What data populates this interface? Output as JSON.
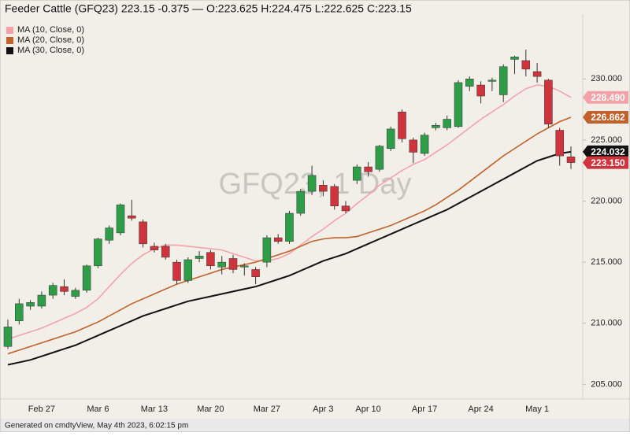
{
  "chart_data": {
    "type": "candlestick",
    "title": "Feeder Cattle (GFQ23) 223.15 -0.375 — O:223.625 H:224.475 L:222.625 C:223.15",
    "watermark": "GFQ23, 1 Day",
    "footer": "Generated on cmdtyView, May 4th 2023, 6:02:15 pm",
    "categories": [
      null,
      null,
      null,
      "Feb 27",
      null,
      null,
      null,
      null,
      "Mar 6",
      null,
      null,
      null,
      null,
      "Mar 13",
      null,
      null,
      null,
      null,
      "Mar 20",
      null,
      null,
      null,
      null,
      "Mar 27",
      null,
      null,
      null,
      null,
      "Apr 3",
      null,
      null,
      null,
      "Apr 10",
      null,
      null,
      null,
      null,
      "Apr 17",
      null,
      null,
      null,
      null,
      "Apr 24",
      null,
      null,
      null,
      null,
      "May 1",
      null,
      null,
      null
    ],
    "up_color": "#2f9c48",
    "down_color": "#cf333b",
    "open": [
      208.1,
      210.2,
      211.4,
      211.4,
      212.3,
      213.0,
      212.2,
      212.7,
      214.7,
      216.8,
      217.4,
      218.8,
      218.3,
      216.3,
      216.3,
      215.0,
      213.5,
      215.3,
      215.8,
      214.6,
      215.3,
      214.6,
      214.4,
      215.0,
      217.0,
      216.7,
      219.0,
      220.8,
      221.3,
      221.2,
      219.6,
      221.7,
      222.8,
      222.6,
      224.3,
      227.3,
      225.0,
      223.9,
      226.0,
      226.0,
      226.1,
      229.4,
      229.5,
      229.8,
      228.7,
      231.6,
      231.5,
      230.6,
      229.9,
      225.8,
      223.625
    ],
    "high": [
      210.3,
      212.0,
      211.9,
      212.6,
      213.3,
      213.6,
      212.9,
      214.8,
      217.0,
      218.0,
      219.8,
      220.1,
      218.5,
      216.6,
      216.5,
      215.2,
      215.4,
      215.9,
      216.0,
      215.5,
      215.6,
      214.9,
      214.6,
      217.2,
      217.3,
      219.2,
      221.0,
      222.9,
      221.7,
      221.4,
      220.0,
      223.0,
      223.2,
      224.6,
      226.1,
      227.5,
      225.2,
      225.6,
      226.4,
      227.0,
      229.9,
      230.2,
      229.8,
      230.1,
      231.2,
      231.9,
      232.4,
      231.3,
      230.0,
      226.0,
      224.475
    ],
    "low": [
      207.9,
      209.9,
      211.1,
      211.2,
      212.0,
      212.3,
      212.0,
      212.5,
      214.5,
      216.5,
      217.2,
      218.4,
      216.2,
      215.8,
      215.2,
      213.2,
      213.3,
      215.0,
      214.4,
      214.0,
      214.1,
      213.9,
      213.2,
      214.6,
      216.5,
      216.5,
      218.8,
      220.5,
      220.4,
      219.3,
      219.0,
      221.4,
      222.0,
      222.4,
      224.1,
      224.8,
      223.1,
      223.7,
      225.8,
      225.8,
      226.0,
      229.0,
      228.0,
      229.0,
      228.1,
      230.4,
      230.2,
      229.7,
      226.0,
      222.9,
      222.625
    ],
    "close": [
      209.7,
      211.6,
      211.7,
      212.3,
      213.1,
      212.6,
      212.7,
      214.7,
      216.9,
      217.8,
      219.7,
      218.6,
      216.5,
      216.0,
      215.4,
      213.5,
      215.2,
      215.5,
      214.7,
      215.0,
      214.4,
      214.7,
      213.8,
      217.0,
      216.7,
      219.0,
      220.8,
      222.1,
      220.8,
      219.6,
      219.2,
      222.8,
      222.4,
      224.5,
      225.9,
      225.1,
      224.0,
      225.4,
      226.2,
      226.7,
      229.7,
      230.0,
      228.6,
      229.9,
      231.0,
      231.8,
      230.8,
      230.2,
      226.3,
      223.7,
      223.15
    ],
    "last_price": {
      "value": 223.15,
      "label": "223.150",
      "color": "#cf333b"
    },
    "series": [
      {
        "name": "MA (10, Close, 0)",
        "color": "#f2a2a9",
        "value_label": "228.490",
        "values": [
          208.7,
          209.0,
          209.3,
          209.6,
          210.0,
          210.4,
          210.8,
          211.3,
          212.0,
          213.0,
          214.0,
          214.9,
          215.6,
          216.1,
          216.4,
          216.4,
          216.3,
          216.2,
          216.1,
          216.0,
          215.7,
          215.4,
          215.1,
          215.1,
          215.3,
          215.7,
          216.4,
          217.1,
          217.7,
          218.4,
          219.0,
          219.8,
          220.5,
          221.3,
          221.9,
          222.5,
          223.0,
          223.4,
          224.0,
          224.6,
          225.3,
          226.0,
          226.7,
          227.3,
          227.9,
          228.6,
          229.2,
          229.5,
          229.4,
          229.0,
          228.49
        ]
      },
      {
        "name": "MA (20, Close, 0)",
        "color": "#c0622a",
        "value_label": "226.862",
        "values": [
          207.5,
          207.8,
          208.1,
          208.4,
          208.7,
          209.0,
          209.3,
          209.7,
          210.1,
          210.6,
          211.1,
          211.6,
          212.0,
          212.4,
          212.8,
          213.2,
          213.5,
          213.8,
          214.1,
          214.4,
          214.6,
          214.8,
          215.0,
          215.3,
          215.6,
          215.9,
          216.3,
          216.7,
          216.9,
          217.0,
          217.0,
          217.1,
          217.4,
          217.7,
          218.0,
          218.4,
          218.8,
          219.2,
          219.7,
          220.3,
          220.9,
          221.6,
          222.3,
          223.0,
          223.7,
          224.3,
          224.9,
          225.5,
          226.0,
          226.5,
          226.862
        ]
      },
      {
        "name": "MA (30, Close, 0)",
        "color": "#111111",
        "value_label": "224.032",
        "values": [
          206.6,
          206.8,
          207.0,
          207.3,
          207.6,
          207.9,
          208.2,
          208.6,
          209.0,
          209.4,
          209.8,
          210.2,
          210.6,
          210.9,
          211.2,
          211.5,
          211.8,
          212.0,
          212.2,
          212.4,
          212.6,
          212.8,
          213.0,
          213.3,
          213.6,
          213.9,
          214.3,
          214.7,
          215.1,
          215.4,
          215.7,
          216.1,
          216.5,
          216.9,
          217.3,
          217.7,
          218.1,
          218.5,
          218.9,
          219.3,
          219.8,
          220.3,
          220.8,
          221.3,
          221.8,
          222.3,
          222.8,
          223.3,
          223.6,
          223.9,
          224.032
        ]
      }
    ],
    "ylim": [
      203.8,
      235.3
    ],
    "yticks": [
      {
        "value": 205,
        "label": "205.000"
      },
      {
        "value": 210,
        "label": "210.000"
      },
      {
        "value": 215,
        "label": "215.000"
      },
      {
        "value": 220,
        "label": "220.000"
      },
      {
        "value": 225,
        "label": "225.000"
      },
      {
        "value": 230,
        "label": "230.000"
      }
    ]
  }
}
